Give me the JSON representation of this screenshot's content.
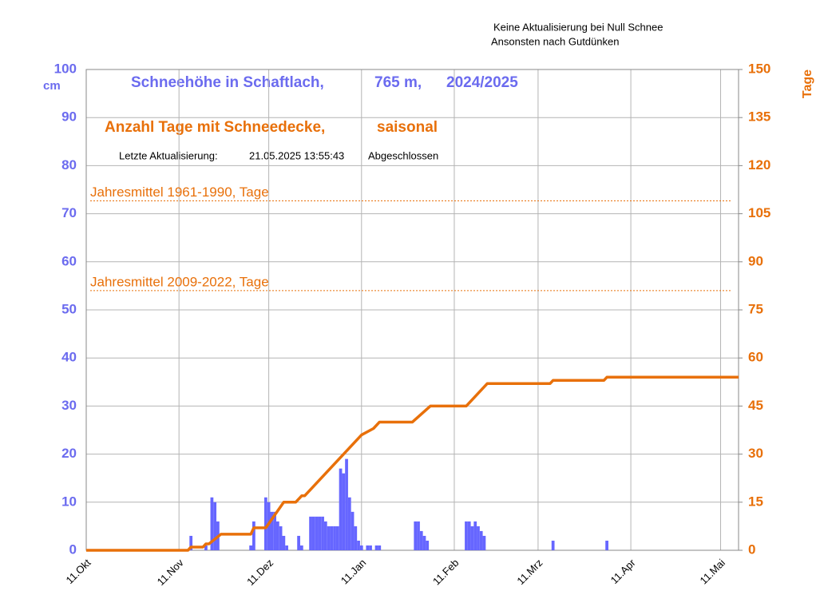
{
  "chart_data": {
    "type": "bar-line",
    "title": [
      "Schneehöhe in Schaftlach,",
      "765 m,",
      "2024/2025"
    ],
    "subtitle": [
      "Anzahl Tage mit Schneedecke,",
      "saisonal"
    ],
    "update": [
      "Letzte Aktualisierung:",
      "21.05.2025 13:55:43",
      "Abgeschlossen"
    ],
    "notes": [
      "Keine Aktualisierung bei Null Schnee",
      "Ansonsten nach Gutdünken"
    ],
    "ylabel": "cm",
    "y2label": "Tage",
    "xlim": [
      0,
      218
    ],
    "xticks": [
      {
        "value": 0,
        "label": "11.Okt"
      },
      {
        "value": 31,
        "label": "11.Nov"
      },
      {
        "value": 61,
        "label": "11.Dez"
      },
      {
        "value": 92,
        "label": "11.Jan"
      },
      {
        "value": 123,
        "label": "11.Feb"
      },
      {
        "value": 151,
        "label": "11.Mrz"
      },
      {
        "value": 182,
        "label": "11.Apr"
      },
      {
        "value": 212,
        "label": "11.Mai"
      }
    ],
    "ylim": [
      0,
      100
    ],
    "yticks": [
      0,
      10,
      20,
      30,
      40,
      50,
      60,
      70,
      80,
      90,
      100
    ],
    "y2lim": [
      0,
      150
    ],
    "y2ticks": [
      0,
      15,
      30,
      45,
      60,
      75,
      90,
      105,
      120,
      135,
      150
    ],
    "grid": true,
    "series": [
      {
        "type": "bar",
        "color": "#6666ff",
        "x": [
          35,
          40,
          42,
          43,
          44,
          55,
          56,
          60,
          61,
          62,
          63,
          64,
          65,
          66,
          67,
          71,
          72,
          75,
          76,
          77,
          78,
          79,
          80,
          81,
          82,
          83,
          84,
          85,
          86,
          87,
          88,
          89,
          90,
          91,
          92,
          94,
          95,
          97,
          98,
          110,
          111,
          112,
          113,
          114,
          127,
          128,
          129,
          130,
          131,
          132,
          133,
          156,
          174
        ],
        "values": [
          3,
          1,
          11,
          10,
          6,
          1,
          6,
          11,
          10,
          8,
          8,
          6,
          5,
          3,
          1,
          3,
          1,
          7,
          7,
          7,
          7,
          7,
          6,
          5,
          5,
          5,
          5,
          17,
          16,
          19,
          11,
          8,
          5,
          2,
          1,
          1,
          1,
          1,
          1,
          6,
          6,
          4,
          3,
          2,
          6,
          6,
          5,
          6,
          5,
          4,
          3,
          2,
          2
        ]
      },
      {
        "type": "line",
        "color": "#e8700a",
        "axis": "y2",
        "x": [
          0,
          34,
          35,
          39,
          40,
          41,
          45,
          55,
          56,
          60,
          66,
          70,
          72,
          73,
          92,
          96,
          98,
          109,
          115,
          127,
          134,
          155,
          156,
          173,
          174,
          218
        ],
        "values": [
          0,
          0,
          1,
          1,
          2,
          2,
          5,
          5,
          7,
          7,
          15,
          15,
          17,
          17,
          36,
          38,
          40,
          40,
          45,
          45,
          52,
          52,
          53,
          53,
          54,
          54
        ]
      }
    ],
    "annotations": [
      {
        "label": "Jahresmittel 1961-1990, Tage",
        "value": 109,
        "axis": "y2",
        "color": "#e8700a"
      },
      {
        "label": "Jahresmittel 2009-2022, Tage",
        "value": 81,
        "axis": "y2",
        "color": "#e8700a"
      }
    ]
  }
}
